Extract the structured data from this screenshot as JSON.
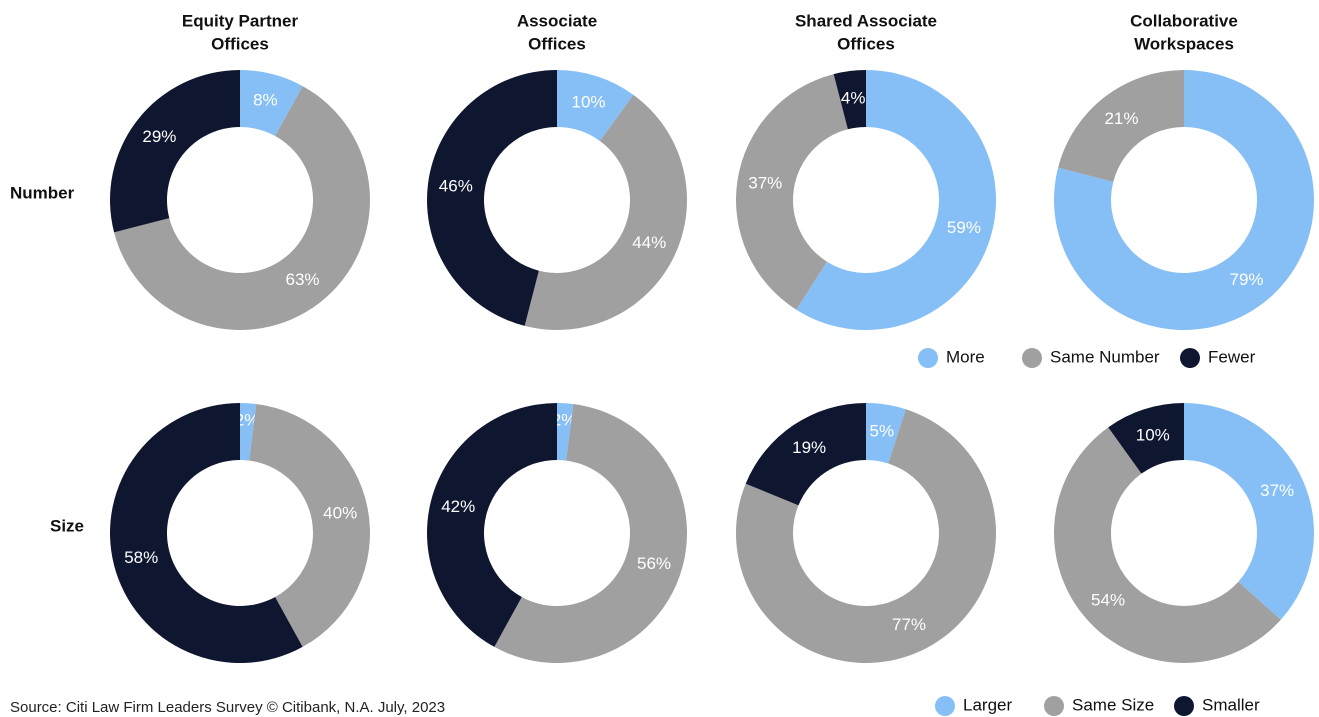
{
  "columns": [
    [
      "Equity Partner",
      "Offices"
    ],
    [
      "Associate",
      "Offices"
    ],
    [
      "Shared Associate",
      "Offices"
    ],
    [
      "Collaborative",
      "Workspaces"
    ]
  ],
  "rows": [
    {
      "label": "Number",
      "categories": [
        "More",
        "Same Number",
        "Fewer"
      ],
      "colors": [
        "#85bff5",
        "#a0a0a0",
        "#0f1630"
      ]
    },
    {
      "label": "Size",
      "categories": [
        "Larger",
        "Same Size",
        "Smaller"
      ],
      "colors": [
        "#85bff5",
        "#a0a0a0",
        "#0f1630"
      ]
    }
  ],
  "chart_data": [
    {
      "type": "donut",
      "values": [
        8,
        63,
        29
      ],
      "value_labels": [
        "8%",
        "63%",
        "29%"
      ]
    },
    {
      "type": "donut",
      "values": [
        10,
        44,
        46
      ],
      "value_labels": [
        "10%",
        "44%",
        "46%"
      ]
    },
    {
      "type": "donut",
      "values": [
        59,
        37,
        4
      ],
      "value_labels": [
        "59%",
        "37%",
        "4%"
      ]
    },
    {
      "type": "donut",
      "values": [
        79,
        21
      ],
      "value_labels": [
        "79%",
        "21%"
      ]
    },
    {
      "type": "donut",
      "values": [
        2,
        40,
        58
      ],
      "value_labels": [
        "2%",
        "40%",
        "58%"
      ]
    },
    {
      "type": "donut",
      "values": [
        2,
        56,
        42
      ],
      "value_labels": [
        "2%",
        "56%",
        "42%"
      ]
    },
    {
      "type": "donut",
      "values": [
        5,
        77,
        19
      ],
      "value_labels": [
        "5%",
        "77%",
        "19%"
      ]
    },
    {
      "type": "donut",
      "values": [
        37,
        54,
        10
      ],
      "value_labels": [
        "37%",
        "54%",
        "10%"
      ]
    }
  ],
  "source": "Source: Citi Law Firm Leaders Survey © Citibank, N.A. July, 2023"
}
